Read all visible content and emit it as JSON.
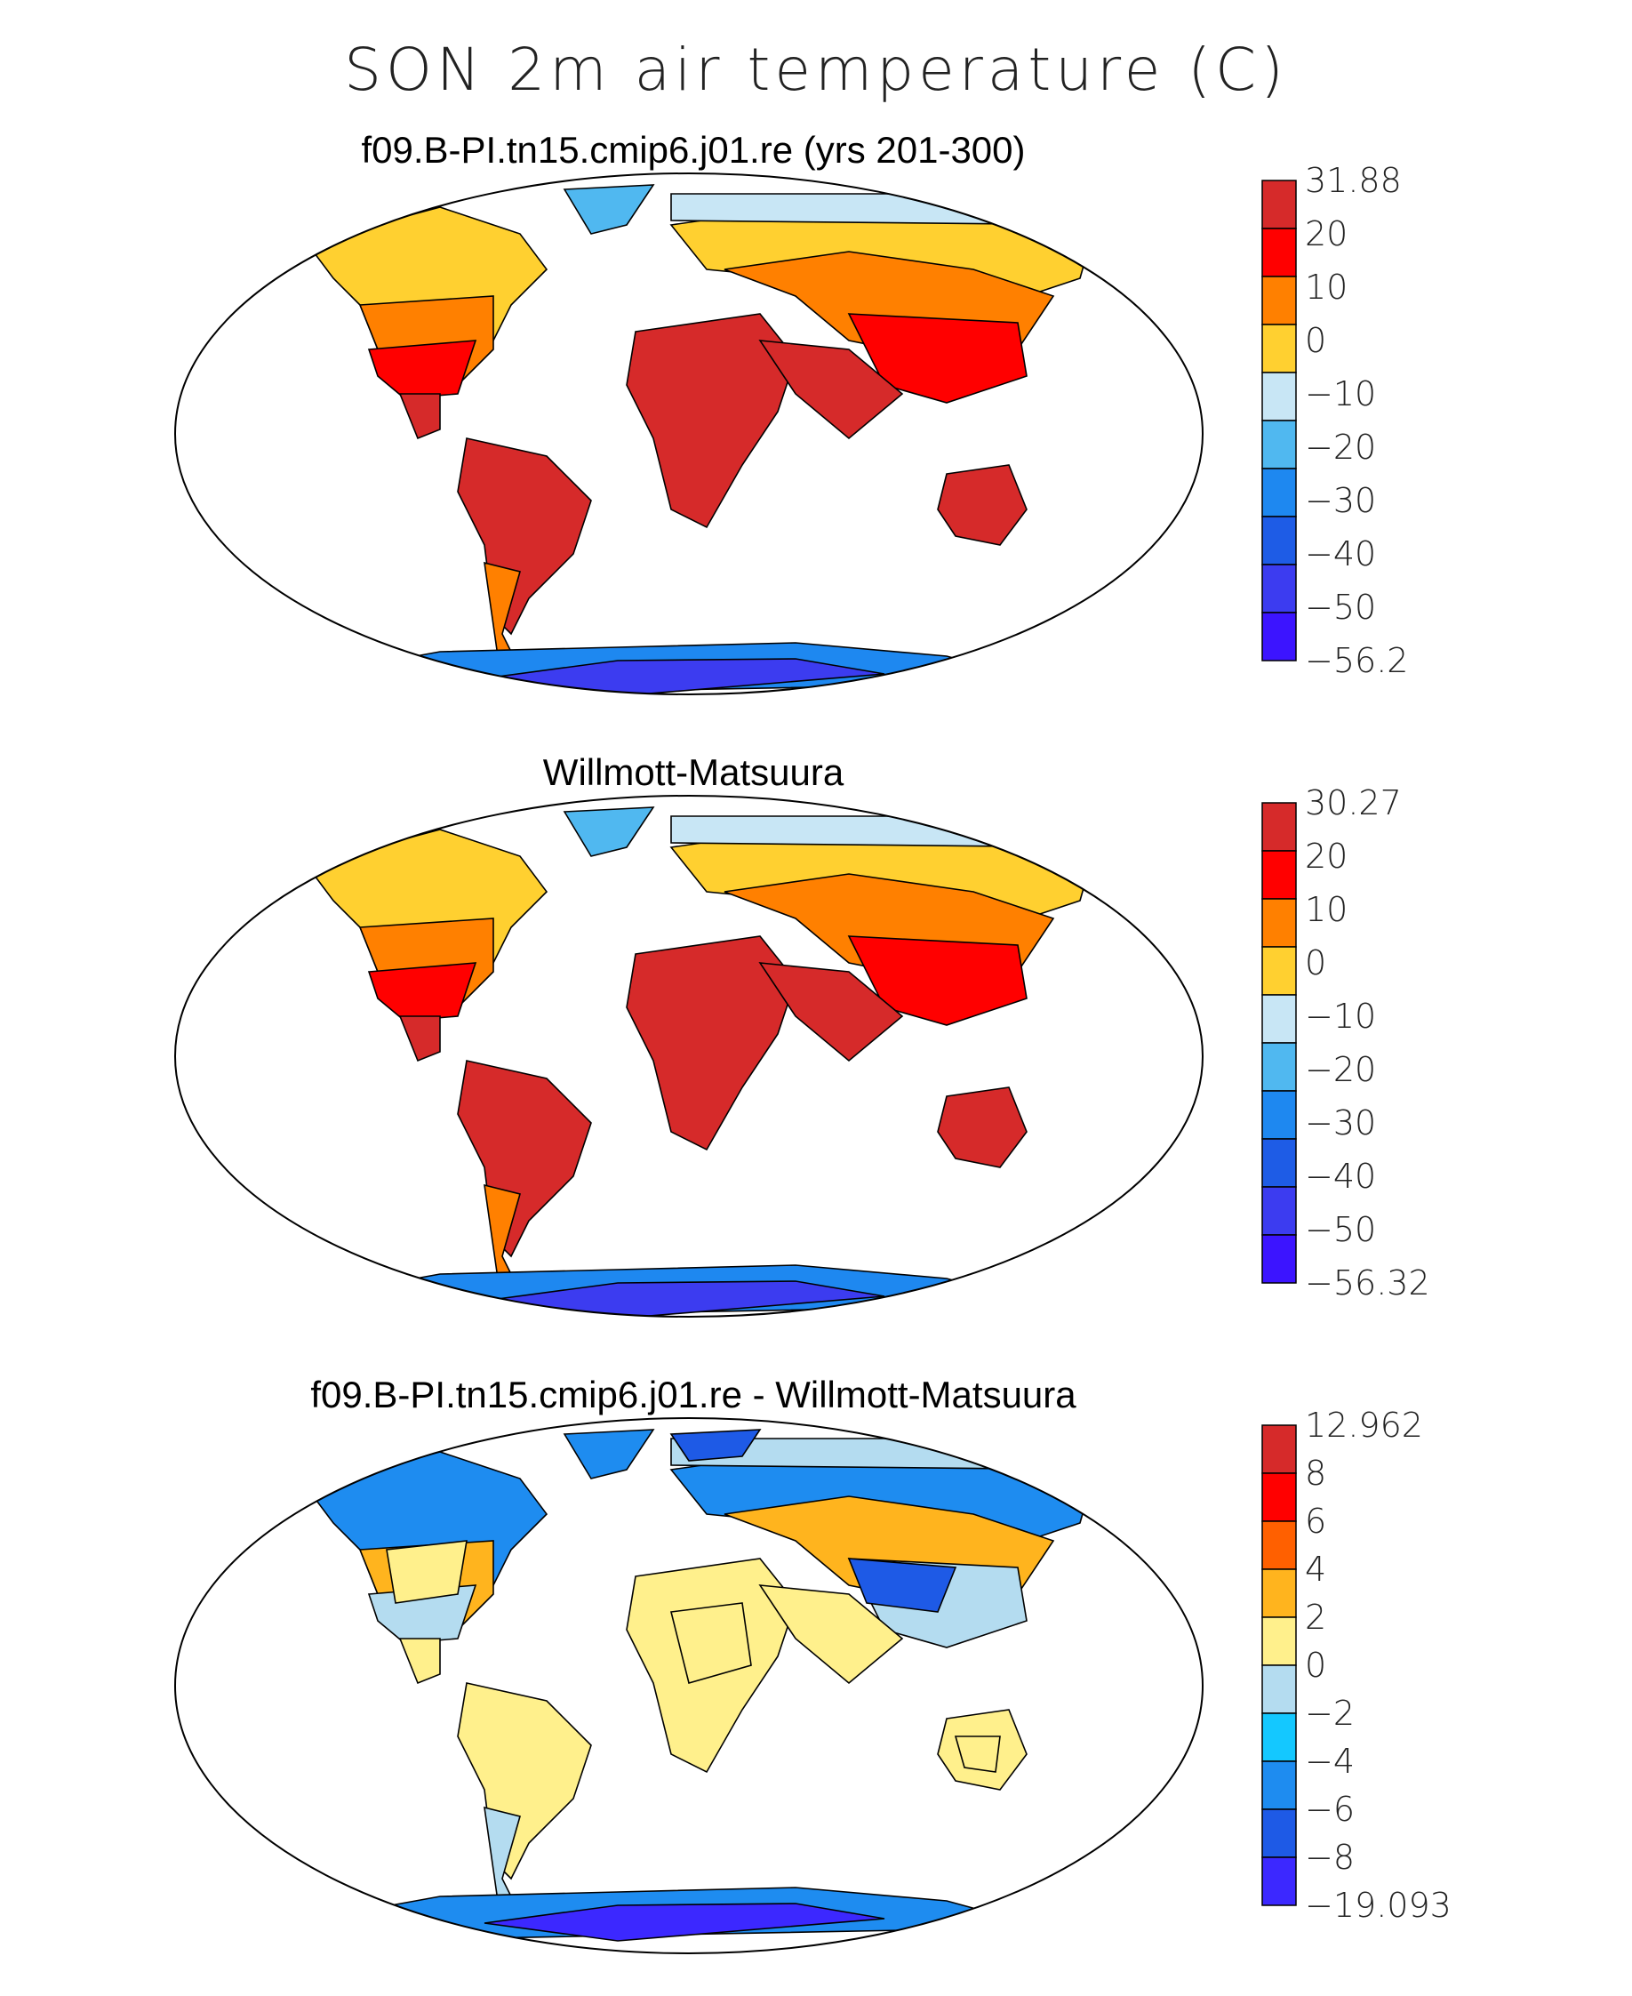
{
  "title": "SON 2m air temperature (C)",
  "panels": [
    {
      "title": "f09.B-PI.tn15.cmip6.j01.re (yrs 201-300)",
      "colorbar": {
        "labels": [
          "31.88",
          "20",
          "10",
          "0",
          "−10",
          "−20",
          "−30",
          "−40",
          "−50",
          "−56.2"
        ],
        "colors": [
          "#d62a2a",
          "#ff0000",
          "#ff8000",
          "#ffd030",
          "#c8e6f5",
          "#50b8f0",
          "#1e88f0",
          "#1e5ce6",
          "#3c3cf0",
          "#3c14ff"
        ]
      }
    },
    {
      "title": "Willmott-Matsuura",
      "colorbar": {
        "labels": [
          "30.27",
          "20",
          "10",
          "0",
          "−10",
          "−20",
          "−30",
          "−40",
          "−50",
          "−56.32"
        ],
        "colors": [
          "#d62a2a",
          "#ff0000",
          "#ff8000",
          "#ffd030",
          "#c8e6f5",
          "#50b8f0",
          "#1e88f0",
          "#1e5ce6",
          "#3c3cf0",
          "#3c14ff"
        ]
      }
    },
    {
      "title": "f09.B-PI.tn15.cmip6.j01.re - Willmott-Matsuura",
      "colorbar": {
        "labels": [
          "12.962",
          "8",
          "6",
          "4",
          "2",
          "0",
          "−2",
          "−4",
          "−6",
          "−8",
          "−19.093"
        ],
        "colors": [
          "#d62a2a",
          "#ff0000",
          "#ff6000",
          "#ffb41e",
          "#fff08c",
          "#b4dcf0",
          "#14c8ff",
          "#1e8cf0",
          "#1e5ae6",
          "#3c28ff"
        ]
      }
    }
  ]
}
